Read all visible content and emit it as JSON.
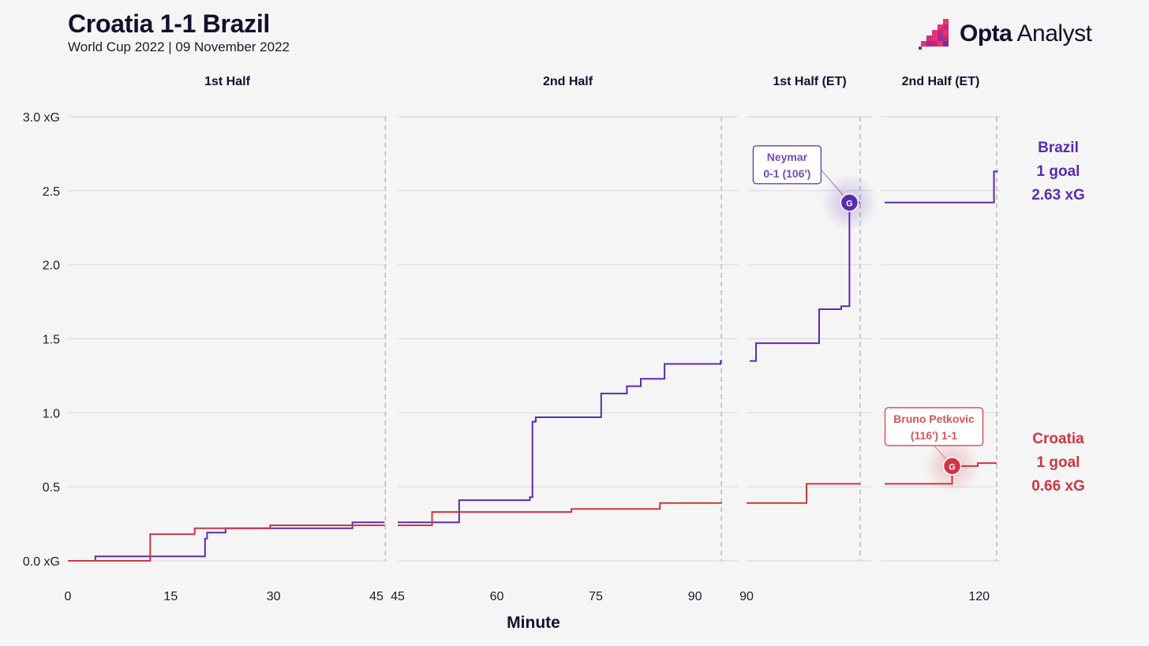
{
  "header": {
    "title": "Croatia 1-1 Brazil",
    "subtitle": "World Cup 2022 | 09 November 2022",
    "brand_bold": "Opta",
    "brand_light": " Analyst"
  },
  "colors": {
    "brazil": "#5b2bb0",
    "croatia": "#cf3541",
    "background": "#f5f5f5",
    "grid": "#dcdcdc",
    "period_end": "#bdbdbd"
  },
  "summary": {
    "brazil": {
      "name": "Brazil",
      "goals": "1 goal",
      "xg": "2.63 xG"
    },
    "croatia": {
      "name": "Croatia",
      "goals": "1 goal",
      "xg": "0.66 xG"
    }
  },
  "chart_data": {
    "type": "line",
    "step": true,
    "xlabel": "Minute",
    "ylabel": "",
    "ylim": [
      0,
      3.0
    ],
    "y_ticks": [
      0.0,
      0.5,
      1.0,
      1.5,
      2.0,
      2.5,
      3.0
    ],
    "y_tick_labels": [
      "0.0 xG",
      "0.5",
      "1.0",
      "1.5",
      "2.0",
      "2.5",
      "3.0 xG"
    ],
    "grid": true,
    "panels": [
      {
        "label": "1st Half",
        "xlim": [
          0,
          46.5
        ],
        "ticks": [
          0,
          15,
          30,
          45
        ],
        "tick_labels": [
          "0",
          "15",
          "30",
          "45"
        ],
        "period_end": 46.3
      },
      {
        "label": "2nd Half",
        "xlim": [
          45,
          96.5
        ],
        "ticks": [
          45,
          60,
          75,
          90
        ],
        "tick_labels": [
          "45",
          "60",
          "75",
          "90"
        ],
        "period_end": 94
      },
      {
        "label": "1st Half (ET)",
        "xlim": [
          90,
          110
        ],
        "ticks": [
          90
        ],
        "tick_labels": [
          "90"
        ],
        "period_end": 108
      },
      {
        "label": "2nd Half (ET)",
        "xlim": [
          105.4,
          123.2
        ],
        "ticks": [
          120
        ],
        "tick_labels": [
          "120"
        ],
        "period_end": 122.6
      }
    ],
    "series": [
      {
        "name": "Brazil",
        "team": "brazil",
        "segments": [
          [
            [
              0,
              0
            ],
            [
              4,
              0
            ],
            [
              4,
              0.03
            ],
            [
              20,
              0.03
            ],
            [
              20,
              0.15
            ],
            [
              20.3,
              0.15
            ],
            [
              20.3,
              0.19
            ],
            [
              23,
              0.19
            ],
            [
              23,
              0.22
            ],
            [
              41.5,
              0.22
            ],
            [
              41.5,
              0.26
            ],
            [
              46.2,
              0.26
            ]
          ],
          [
            [
              45,
              0.26
            ],
            [
              54.3,
              0.26
            ],
            [
              54.3,
              0.41
            ],
            [
              65,
              0.41
            ],
            [
              65,
              0.43
            ],
            [
              65.4,
              0.43
            ],
            [
              65.4,
              0.94
            ],
            [
              65.9,
              0.94
            ],
            [
              65.9,
              0.97
            ],
            [
              75.8,
              0.97
            ],
            [
              75.8,
              1.13
            ],
            [
              79.7,
              1.13
            ],
            [
              79.7,
              1.18
            ],
            [
              81.8,
              1.18
            ],
            [
              81.8,
              1.23
            ],
            [
              85.4,
              1.23
            ],
            [
              85.4,
              1.33
            ],
            [
              93.9,
              1.33
            ],
            [
              93.9,
              1.35
            ],
            [
              94.1,
              1.35
            ]
          ],
          [
            [
              90.5,
              1.35
            ],
            [
              91.5,
              1.35
            ],
            [
              91.5,
              1.47
            ],
            [
              101.5,
              1.47
            ],
            [
              101.5,
              1.7
            ],
            [
              105,
              1.7
            ],
            [
              105,
              1.72
            ],
            [
              106.3,
              1.72
            ],
            [
              106.3,
              2.42
            ],
            [
              108,
              2.42
            ]
          ],
          [
            [
              106,
              2.42
            ],
            [
              122.2,
              2.42
            ],
            [
              122.2,
              2.63
            ],
            [
              122.8,
              2.63
            ]
          ]
        ]
      },
      {
        "name": "Croatia",
        "team": "croatia",
        "segments": [
          [
            [
              0,
              0
            ],
            [
              12,
              0
            ],
            [
              12,
              0.18
            ],
            [
              18.5,
              0.18
            ],
            [
              18.5,
              0.22
            ],
            [
              29.5,
              0.22
            ],
            [
              29.5,
              0.24
            ],
            [
              46.2,
              0.24
            ]
          ],
          [
            [
              45,
              0.24
            ],
            [
              50.2,
              0.24
            ],
            [
              50.2,
              0.33
            ],
            [
              71.3,
              0.33
            ],
            [
              71.3,
              0.35
            ],
            [
              84.7,
              0.35
            ],
            [
              84.7,
              0.39
            ],
            [
              94.1,
              0.39
            ]
          ],
          [
            [
              90,
              0.39
            ],
            [
              99.5,
              0.39
            ],
            [
              99.5,
              0.52
            ],
            [
              108,
              0.52
            ]
          ],
          [
            [
              106,
              0.52
            ],
            [
              116,
              0.52
            ],
            [
              116,
              0.64
            ],
            [
              119.8,
              0.64
            ],
            [
              119.8,
              0.66
            ],
            [
              122.6,
              0.66
            ]
          ]
        ]
      }
    ],
    "annotations": [
      {
        "team": "brazil",
        "panel": 2,
        "x": 106.3,
        "y": 2.42,
        "marker": "G",
        "label_line1": "Neymar",
        "label_line2": "0-1 (106')"
      },
      {
        "team": "croatia",
        "panel": 3,
        "x": 116,
        "y": 0.64,
        "marker": "G",
        "label_line1": "Bruno Petkovic",
        "label_line2": "(116') 1-1"
      }
    ]
  }
}
